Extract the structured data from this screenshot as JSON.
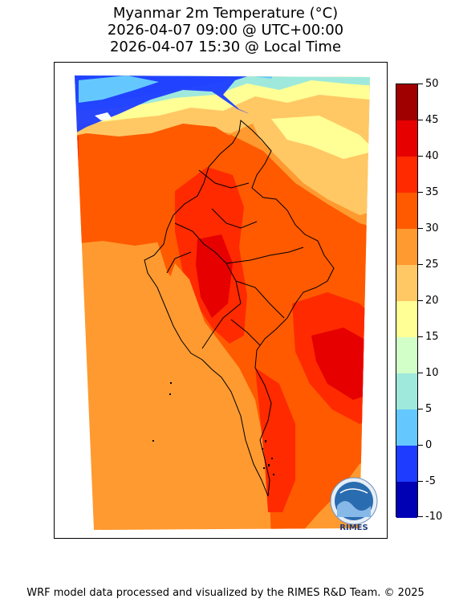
{
  "title": {
    "line1": "Myanmar 2m Temperature (°C)",
    "line2": "2026-04-07 09:00 @ UTC+00:00",
    "line3": "2026-04-07 15:30 @ Local Time"
  },
  "colorbar": {
    "ticks": [
      "50",
      "45",
      "40",
      "35",
      "30",
      "25",
      "20",
      "15",
      "10",
      "5",
      "0",
      "-5",
      "-10"
    ],
    "colors_top_to_bottom": [
      "#a00000",
      "#e60000",
      "#ff2a00",
      "#ff5a00",
      "#ff9a30",
      "#ffc864",
      "#ffff96",
      "#d2ffc8",
      "#9fe9dc",
      "#64c8ff",
      "#1e3cff",
      "#0000b4"
    ]
  },
  "logo": {
    "text": "RIMES"
  },
  "footer": {
    "credit": "WRF model data processed and visualized by the RIMES R&D Team. © 2025"
  }
}
